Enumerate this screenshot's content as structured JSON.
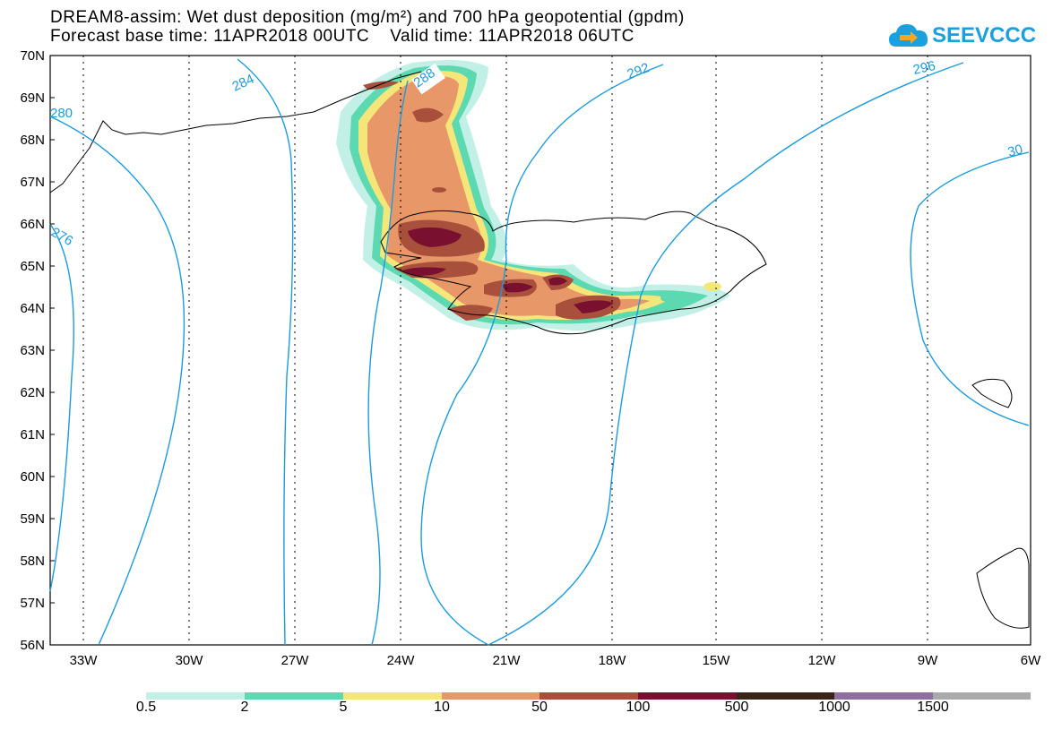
{
  "title": {
    "line1": "DREAM8-assim: Wet dust deposition (mg/m²) and 700 hPa geopotential (gpdm)",
    "line2": "Forecast base time: 11APR2018 00UTC    Valid time: 11APR2018 06UTC"
  },
  "logo": {
    "text": "SEEVCCC",
    "icon": "cloud-arrow-icon"
  },
  "map": {
    "lat_labels": [
      "70N",
      "69N",
      "68N",
      "67N",
      "66N",
      "65N",
      "64N",
      "63N",
      "62N",
      "61N",
      "60N",
      "59N",
      "58N",
      "57N",
      "56N"
    ],
    "lon_labels": [
      "33W",
      "30W",
      "27W",
      "24W",
      "21W",
      "18W",
      "15W",
      "12W",
      "9W",
      "6W"
    ],
    "contour_labels": [
      "280",
      "284",
      "288",
      "292",
      "296",
      "276",
      "30"
    ],
    "contour_color": "#1a9be0",
    "land_outline": "coastline"
  },
  "colorbar": {
    "labels": [
      "0.5",
      "2",
      "5",
      "10",
      "50",
      "100",
      "500",
      "1000",
      "1500"
    ],
    "colors": [
      "#c2f0e6",
      "#5cd9b0",
      "#f5e67a",
      "#e89868",
      "#a8503c",
      "#7a1030",
      "#3a2418",
      "#8f6fa0",
      "#aaaaaa"
    ]
  }
}
